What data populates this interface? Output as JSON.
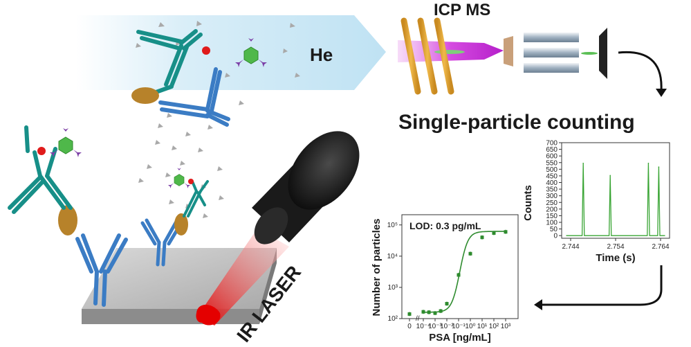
{
  "labels": {
    "carrier_gas": "He",
    "instrument": "ICP MS",
    "detection_mode": "Single-particle counting",
    "laser": "IR LASER"
  },
  "chart_data": [
    {
      "type": "line",
      "title": "",
      "xlabel": "Time (s)",
      "ylabel": "Counts",
      "xlim": [
        2.742,
        2.766
      ],
      "ylim": [
        -20,
        700
      ],
      "x_ticks": [
        "2.744",
        "2.754",
        "2.764"
      ],
      "y_ticks": [
        "0",
        "50",
        "100",
        "150",
        "200",
        "250",
        "300",
        "350",
        "400",
        "450",
        "500",
        "550",
        "600",
        "650",
        "700"
      ],
      "series": [
        {
          "peaks": [
            {
              "x": 2.7468,
              "y": 545
            },
            {
              "x": 2.7528,
              "y": 453
            },
            {
              "x": 2.7613,
              "y": 545
            },
            {
              "x": 2.7636,
              "y": 517
            }
          ],
          "baseline": 0,
          "color": "#3aa535"
        }
      ],
      "grid": false
    },
    {
      "type": "scatter",
      "title": "",
      "annotation": "LOD: 0.3 pg/mL",
      "xlabel": "PSA [ng/mL]",
      "ylabel": "Number of particles",
      "x_scale": "log",
      "y_scale": "log",
      "x_tick_labels": [
        "0",
        "10⁻⁴",
        "10⁻³",
        "10⁻²",
        "10⁻¹",
        "10⁰",
        "10¹",
        "10²",
        "10³"
      ],
      "y_tick_labels": [
        "10²",
        "10³",
        "10⁴",
        "10⁵"
      ],
      "points": [
        {
          "x": "0",
          "y": 140
        },
        {
          "x": 0.0001,
          "y": 165
        },
        {
          "x": 0.0003,
          "y": 160
        },
        {
          "x": 0.001,
          "y": 150
        },
        {
          "x": 0.003,
          "y": 175
        },
        {
          "x": 0.01,
          "y": 300
        },
        {
          "x": 0.1,
          "y": 2500
        },
        {
          "x": 1,
          "y": 12000
        },
        {
          "x": 10,
          "y": 40000
        },
        {
          "x": 100,
          "y": 55000
        },
        {
          "x": 1000,
          "y": 60000
        }
      ],
      "fit": "sigmoidal",
      "color": "#2e8b2e",
      "grid": false
    }
  ]
}
